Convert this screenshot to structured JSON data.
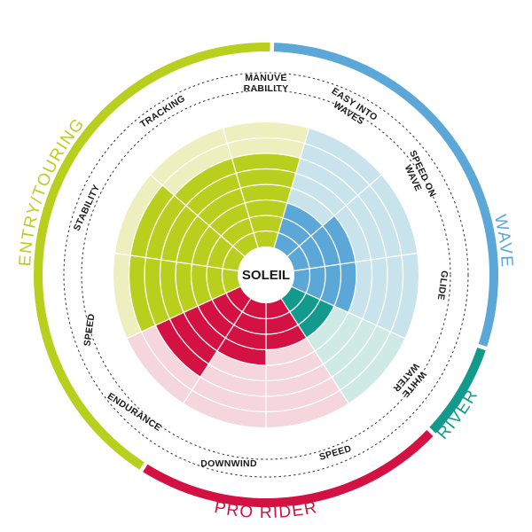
{
  "chart_data": {
    "type": "radial-bar",
    "center_label": "SOLEIL",
    "max_level": 8,
    "segments": [
      {
        "name": "MANUVE RABILITY",
        "value": 6,
        "category": 0
      },
      {
        "name": "EASY INTO WAVES",
        "value": 3,
        "category": 1
      },
      {
        "name": "SPEED ON WAVE",
        "value": 4,
        "category": 1
      },
      {
        "name": "GLIDE",
        "value": 4,
        "category": 1
      },
      {
        "name": "WHITE WATER",
        "value": 3,
        "category": 2
      },
      {
        "name": "SPEED",
        "value": 3,
        "category": 3
      },
      {
        "name": "DOWNWIND",
        "value": 4,
        "category": 3
      },
      {
        "name": "ENDURANCE",
        "value": 6,
        "category": 3
      },
      {
        "name": "SPEED",
        "value": 7,
        "category": 0
      },
      {
        "name": "STABILITY",
        "value": 7,
        "category": 0
      },
      {
        "name": "TRACKING",
        "value": 6,
        "category": 0
      }
    ],
    "categories": [
      {
        "name": "ENTRY/TOURING",
        "color": "#b9cf1e",
        "light": "#eeefbe"
      },
      {
        "name": "WAVE",
        "color": "#5ba7d8",
        "light": "#c9e3ec"
      },
      {
        "name": "RIVER",
        "color": "#129a8d",
        "light": "#cfeae4"
      },
      {
        "name": "PRO RIDER",
        "color": "#d31142",
        "light": "#f5d6dd"
      }
    ]
  }
}
